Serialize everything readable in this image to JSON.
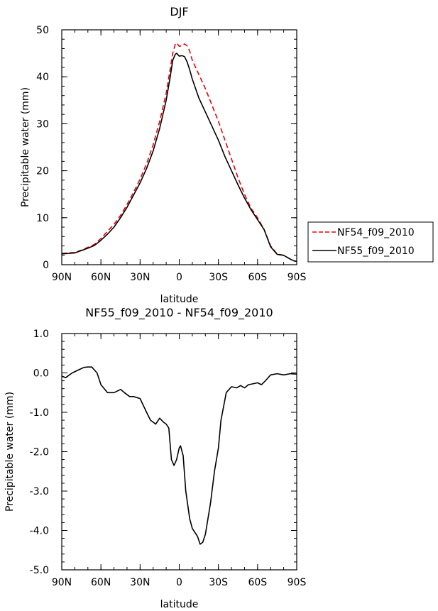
{
  "chart_data": [
    {
      "type": "line",
      "title": "DJF",
      "xlabel": "latitude",
      "ylabel": "Precipitable water (mm)",
      "xlim": [
        -90,
        90
      ],
      "ylim": [
        0,
        50
      ],
      "x_ticks": [
        "90N",
        "60N",
        "30N",
        "0",
        "30S",
        "60S",
        "90S"
      ],
      "y_ticks": [
        "0",
        "10",
        "20",
        "30",
        "40",
        "50"
      ],
      "legend_position": "right",
      "series": [
        {
          "name": "NF54_f09_2010",
          "color": "#e8000b",
          "dash": "dashed",
          "x": [
            -90,
            -80,
            -75,
            -70,
            -65,
            -60,
            -55,
            -50,
            -45,
            -40,
            -35,
            -30,
            -25,
            -20,
            -15,
            -10,
            -7,
            -5,
            -3,
            -2,
            0,
            2,
            4,
            6,
            8,
            10,
            15,
            20,
            25,
            30,
            35,
            40,
            45,
            50,
            55,
            60,
            65,
            70,
            75,
            80,
            85,
            88,
            90
          ],
          "y": [
            2.4,
            2.6,
            3.1,
            3.7,
            4.3,
            5.6,
            7.1,
            8.6,
            10.5,
            12.8,
            15.4,
            18.2,
            21.5,
            25.5,
            30.5,
            36.5,
            41.5,
            45,
            47,
            47.2,
            46.5,
            46.6,
            47,
            46.6,
            45.5,
            43.5,
            40.5,
            37.5,
            34,
            30.5,
            26.5,
            22.5,
            18.5,
            15,
            12,
            10,
            7.5,
            4,
            2.3,
            2,
            1.2,
            0.8,
            0.7
          ]
        },
        {
          "name": "NF55_f09_2010",
          "color": "#000000",
          "dash": "solid",
          "x": [
            -90,
            -80,
            -75,
            -70,
            -65,
            -60,
            -55,
            -50,
            -45,
            -40,
            -35,
            -30,
            -25,
            -20,
            -15,
            -10,
            -7,
            -5,
            -3,
            -2,
            0,
            2,
            4,
            6,
            8,
            10,
            15,
            20,
            25,
            30,
            35,
            40,
            45,
            50,
            55,
            60,
            65,
            70,
            75,
            80,
            85,
            88,
            90
          ],
          "y": [
            2.3,
            2.5,
            3,
            3.5,
            4.1,
            5.2,
            6.5,
            8,
            10,
            12.2,
            14.8,
            17.4,
            20.5,
            24.2,
            29,
            35,
            39.8,
            43.5,
            44.8,
            45,
            44.4,
            44.5,
            44.3,
            43.2,
            41.5,
            39.5,
            35.5,
            32.5,
            29.5,
            26.5,
            23,
            20,
            17,
            14.2,
            11.7,
            9.6,
            7.5,
            3.8,
            2.2,
            2,
            1.2,
            0.8,
            0.7
          ]
        }
      ]
    },
    {
      "type": "line",
      "title": "NF55_f09_2010 - NF54_f09_2010",
      "xlabel": "latitude",
      "ylabel": "Precipitable water (mm)",
      "xlim": [
        -90,
        90
      ],
      "ylim": [
        -5,
        1
      ],
      "x_ticks": [
        "90N",
        "60N",
        "30N",
        "0",
        "30S",
        "60S",
        "90S"
      ],
      "y_ticks": [
        "1.0",
        "0.0",
        "-1.0",
        "-2.0",
        "-3.0",
        "-4.0",
        "-5.0"
      ],
      "series": [
        {
          "color": "#000000",
          "dash": "solid",
          "x": [
            -90,
            -87,
            -82,
            -77,
            -73,
            -70,
            -67,
            -63,
            -60,
            -55,
            -50,
            -45,
            -42,
            -38,
            -35,
            -30,
            -25,
            -22,
            -18,
            -15,
            -12,
            -10,
            -8,
            -6,
            -4,
            -2,
            0,
            1,
            3,
            5,
            8,
            10,
            14,
            16,
            18,
            20,
            24,
            27,
            30,
            32,
            36,
            40,
            44,
            47,
            50,
            53,
            56,
            60,
            63,
            66,
            70,
            75,
            80,
            85,
            90
          ],
          "y": [
            -0.08,
            -0.12,
            0,
            0.08,
            0.14,
            0.15,
            0.15,
            0,
            -0.3,
            -0.5,
            -0.5,
            -0.42,
            -0.5,
            -0.6,
            -0.6,
            -0.65,
            -1,
            -1.2,
            -1.3,
            -1.15,
            -1.25,
            -1.3,
            -1.4,
            -2.2,
            -2.35,
            -2.2,
            -1.9,
            -1.85,
            -2.1,
            -3,
            -3.7,
            -3.95,
            -4.15,
            -4.35,
            -4.3,
            -4.1,
            -3.3,
            -2.5,
            -1.9,
            -1.2,
            -0.5,
            -0.35,
            -0.38,
            -0.32,
            -0.38,
            -0.3,
            -0.28,
            -0.25,
            -0.3,
            -0.2,
            -0.05,
            -0.02,
            -0.05,
            -0.02,
            -0.03
          ]
        }
      ]
    }
  ]
}
